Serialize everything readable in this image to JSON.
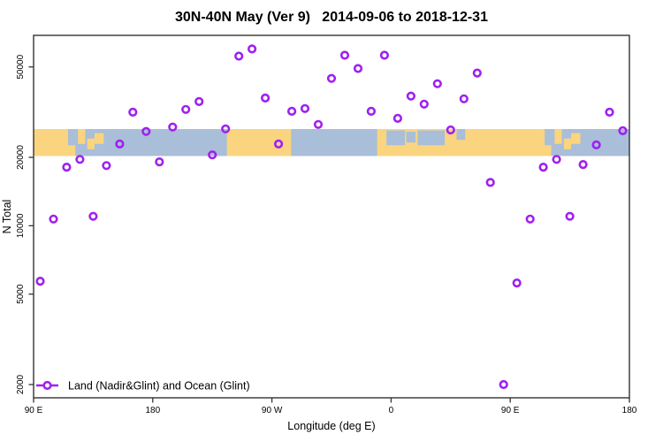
{
  "title": "30N-40N May (Ver 9)   2014-09-06 to 2018-12-31",
  "legend": {
    "label": "Land (Nadir&Glint) and Ocean (Glint)",
    "marker": "open-circle-with-line"
  },
  "colors": {
    "marker": "#A020F0",
    "land": "#FAD47F",
    "ocean": "#A9BED9",
    "axis": "#333333",
    "text": "#000000",
    "background": "#ffffff"
  },
  "chart_data": {
    "type": "scatter",
    "title": "30N-40N May (Ver 9)  2014-09-06 to 2018-12-31",
    "xlabel": "Longitude (deg E)",
    "ylabel": "N Total",
    "grid": false,
    "legend_position": "bottom-left",
    "x_axis": {
      "range_deg": [
        90,
        540
      ],
      "note": "longitude axis wraps: 90E to 180 to 90W to 0 to 90E to 180",
      "ticks": [
        {
          "deg": 90,
          "label": "90 E"
        },
        {
          "deg": 180,
          "label": "180"
        },
        {
          "deg": 270,
          "label": "90 W"
        },
        {
          "deg": 360,
          "label": "0"
        },
        {
          "deg": 450,
          "label": "90 E"
        },
        {
          "deg": 540,
          "label": "180"
        }
      ]
    },
    "y_axis": {
      "scale": "log",
      "range": [
        1700,
        66000
      ],
      "ticks": [
        {
          "v": 2000,
          "label": "2000"
        },
        {
          "v": 5000,
          "label": "5000"
        },
        {
          "v": 10000,
          "label": "10000"
        },
        {
          "v": 20000,
          "label": "20000"
        },
        {
          "v": 50000,
          "label": "50000"
        }
      ]
    },
    "map_band": {
      "description": "land/ocean strip map of 30N-40N latitude band",
      "n_top": 26600,
      "n_bottom": 20300,
      "land_segments": [
        {
          "lon1": 90,
          "lon2": 121.5,
          "f1": 0,
          "f2": 1
        },
        {
          "lon1": 123.5,
          "lon2": 129,
          "f1": 0,
          "f2": 0.55
        },
        {
          "lon1": 130.5,
          "lon2": 136,
          "f1": 0.35,
          "f2": 0.75
        },
        {
          "lon1": 136,
          "lon2": 143,
          "f1": 0.15,
          "f2": 0.55
        },
        {
          "lon1": 236,
          "lon2": 284.5,
          "f1": 0,
          "f2": 1
        },
        {
          "lon1": 349.5,
          "lon2": 481,
          "f1": 0,
          "f2": 1
        },
        {
          "lon1": 483.5,
          "lon2": 489,
          "f1": 0,
          "f2": 0.55
        },
        {
          "lon1": 490.5,
          "lon2": 496,
          "f1": 0.35,
          "f2": 0.75
        },
        {
          "lon1": 496,
          "lon2": 503,
          "f1": 0.15,
          "f2": 0.55
        }
      ],
      "ocean_patches": [
        {
          "lon1": 116,
          "lon2": 121.5,
          "f1": 0,
          "f2": 0.6
        },
        {
          "lon1": 356.5,
          "lon2": 370.5,
          "f1": 0.05,
          "f2": 0.6
        },
        {
          "lon1": 371.5,
          "lon2": 378.5,
          "f1": 0.1,
          "f2": 0.5
        },
        {
          "lon1": 380,
          "lon2": 400.5,
          "f1": 0.05,
          "f2": 0.6
        },
        {
          "lon1": 409.5,
          "lon2": 416,
          "f1": 0,
          "f2": 0.4
        },
        {
          "lon1": 476,
          "lon2": 481,
          "f1": 0,
          "f2": 0.6
        }
      ]
    },
    "series": [
      {
        "name": "Land (Nadir&Glint) and Ocean (Glint)",
        "marker": "open-circle",
        "color": "#A020F0",
        "points": [
          {
            "lon": 95,
            "n": 5700
          },
          {
            "lon": 105,
            "n": 10700
          },
          {
            "lon": 115,
            "n": 18100
          },
          {
            "lon": 125,
            "n": 19600
          },
          {
            "lon": 135,
            "n": 11000
          },
          {
            "lon": 145,
            "n": 18400
          },
          {
            "lon": 155,
            "n": 22900
          },
          {
            "lon": 165,
            "n": 31600
          },
          {
            "lon": 175,
            "n": 26000
          },
          {
            "lon": 185,
            "n": 19100
          },
          {
            "lon": 195,
            "n": 27200
          },
          {
            "lon": 205,
            "n": 32500
          },
          {
            "lon": 215,
            "n": 35200
          },
          {
            "lon": 225,
            "n": 20500
          },
          {
            "lon": 235,
            "n": 26700
          },
          {
            "lon": 245,
            "n": 55800
          },
          {
            "lon": 255,
            "n": 60000
          },
          {
            "lon": 265,
            "n": 36500
          },
          {
            "lon": 275,
            "n": 22900
          },
          {
            "lon": 285,
            "n": 31900
          },
          {
            "lon": 295,
            "n": 32800
          },
          {
            "lon": 305,
            "n": 27900
          },
          {
            "lon": 315,
            "n": 44500
          },
          {
            "lon": 325,
            "n": 56300
          },
          {
            "lon": 335,
            "n": 49200
          },
          {
            "lon": 345,
            "n": 31900
          },
          {
            "lon": 355,
            "n": 56300
          },
          {
            "lon": 365,
            "n": 29700
          },
          {
            "lon": 375,
            "n": 37200
          },
          {
            "lon": 385,
            "n": 34300
          },
          {
            "lon": 395,
            "n": 42200
          },
          {
            "lon": 405,
            "n": 26400
          },
          {
            "lon": 415,
            "n": 36200
          },
          {
            "lon": 425,
            "n": 47000
          },
          {
            "lon": 435,
            "n": 15500
          },
          {
            "lon": 445,
            "n": 2000
          },
          {
            "lon": 455,
            "n": 5600
          },
          {
            "lon": 465,
            "n": 10700
          },
          {
            "lon": 475,
            "n": 18100
          },
          {
            "lon": 485,
            "n": 19600
          },
          {
            "lon": 495,
            "n": 11000
          },
          {
            "lon": 505,
            "n": 18600
          },
          {
            "lon": 515,
            "n": 22700
          },
          {
            "lon": 525,
            "n": 31600
          },
          {
            "lon": 535,
            "n": 26200
          }
        ]
      }
    ]
  }
}
